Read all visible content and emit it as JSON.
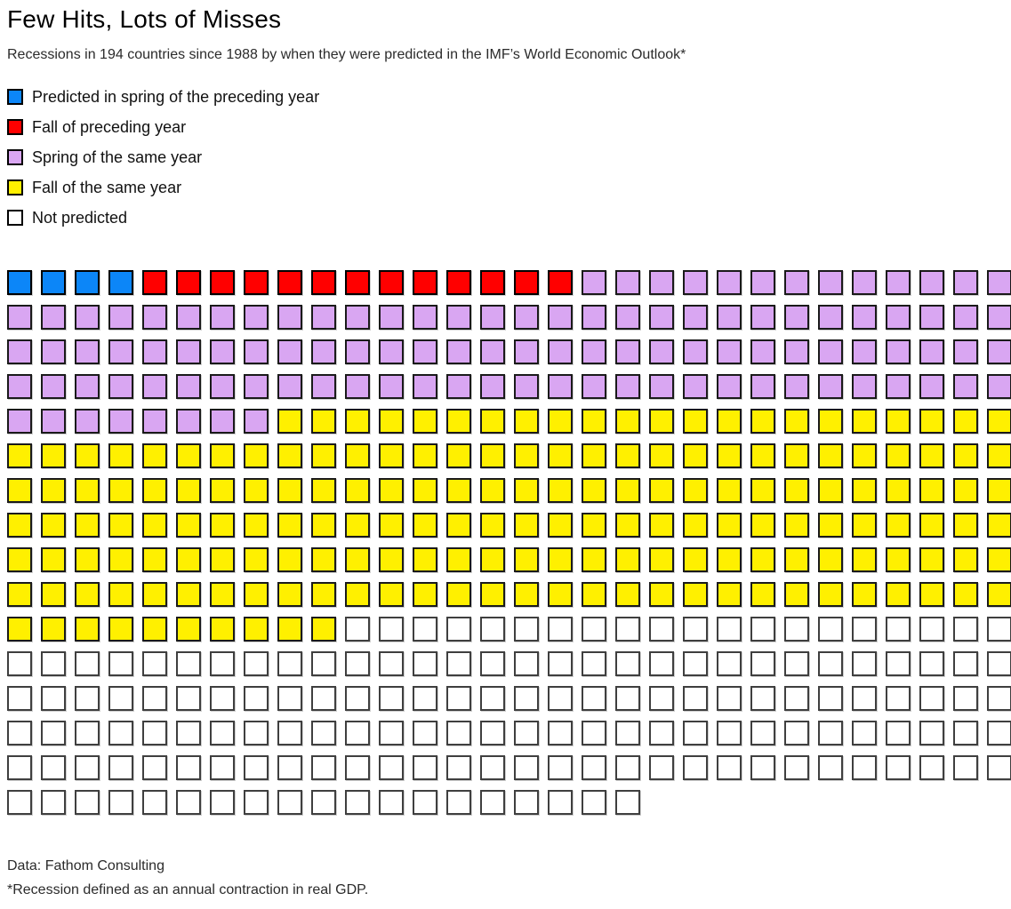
{
  "title": "Few Hits, Lots of Misses",
  "subtitle": "Recessions in 194 countries since 1988 by when they were predicted in the IMF’s World Economic Outlook*",
  "chart_data": {
    "type": "waffle",
    "title": "Few Hits, Lots of Misses",
    "subtitle": "Recessions in 194 countries since 1988 by when they were predicted in the IMF’s World Economic Outlook*",
    "unit": "one square = one recession",
    "grid": {
      "columns": 30,
      "rows": 16,
      "last_row_cells": 19,
      "total_cells": 469
    },
    "legend_position": "top-left, vertical list",
    "series": [
      {
        "key": "spring_preceding_year",
        "name": "Predicted in spring of the preceding year",
        "color": "#0c86f8",
        "border": "#000000",
        "count": 4
      },
      {
        "key": "fall_preceding_year",
        "name": "Fall of preceding year",
        "color": "#ff0000",
        "border": "#000000",
        "count": 13
      },
      {
        "key": "spring_same_year",
        "name": "Spring of the same year",
        "color": "#d9a6f2",
        "border": "#1a1a1a",
        "count": 111
      },
      {
        "key": "fall_same_year",
        "name": "Fall of the same year",
        "color": "#fff000",
        "border": "#1a1a1a",
        "count": 182
      },
      {
        "key": "not_predicted",
        "name": "Not predicted",
        "color": "#ffffff",
        "border": "#3f3f3f",
        "count": 159
      }
    ]
  },
  "footer": {
    "source": "Data: Fathom Consulting",
    "footnote": "*Recession defined as an annual contraction in real GDP."
  }
}
